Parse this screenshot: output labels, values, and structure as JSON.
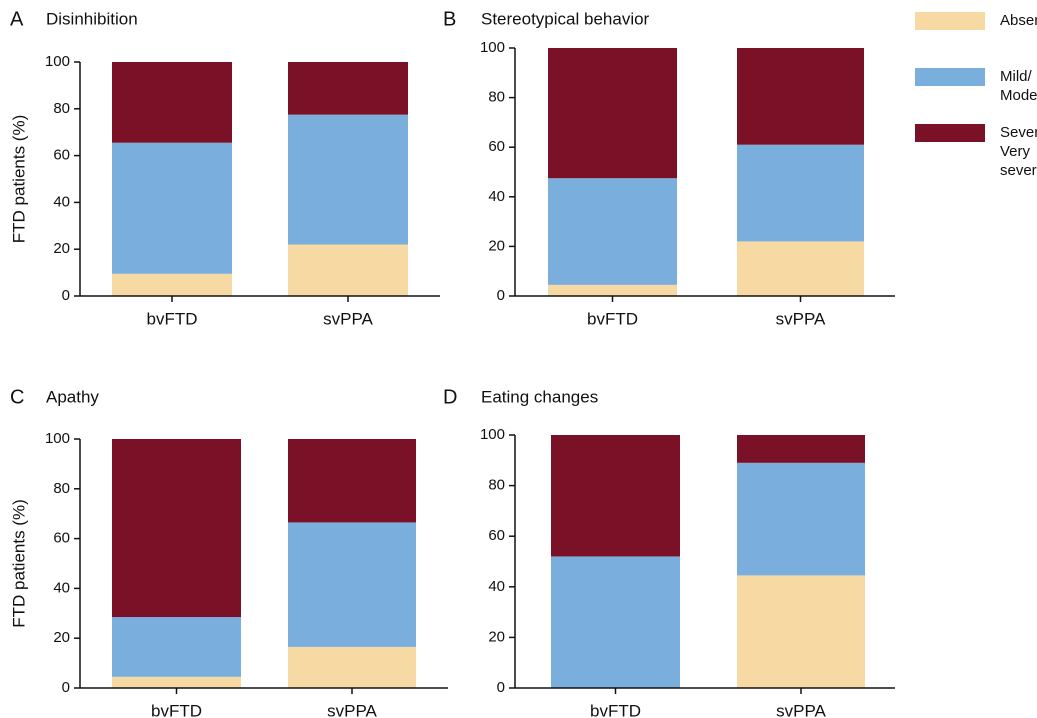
{
  "chart_data": [
    {
      "type": "stacked-bar",
      "panel": "A",
      "title": "Disinhibition",
      "ylabel": "FTD patients (%)",
      "legend": "right",
      "categories": [
        "bvFTD",
        "svPPA"
      ],
      "series": [
        {
          "name": "Absent",
          "color": "#f7d9a4",
          "values": [
            9.5,
            22
          ]
        },
        {
          "name": "Mild/\nModerate",
          "color": "#7aaedd",
          "values": [
            56,
            55.5
          ]
        },
        {
          "name": "Severe/\nVery severe",
          "color": "#7a1126",
          "values": [
            34.5,
            22.5
          ]
        }
      ],
      "ylim": [
        0,
        100
      ],
      "yticks": [
        0,
        20,
        40,
        60,
        80,
        100
      ]
    },
    {
      "type": "stacked-bar",
      "panel": "B",
      "title": "Stereotypical behavior",
      "categories": [
        "bvFTD",
        "svPPA"
      ],
      "series": [
        {
          "color": "#f7d9a4",
          "values": [
            4.5,
            22
          ]
        },
        {
          "color": "#7aaedd",
          "values": [
            43,
            39
          ]
        },
        {
          "color": "#7a1126",
          "values": [
            52.5,
            39
          ]
        }
      ],
      "ylim": [
        0,
        100
      ],
      "yticks": [
        0,
        20,
        40,
        60,
        80,
        100
      ]
    },
    {
      "type": "stacked-bar",
      "panel": "C",
      "title": "Apathy",
      "ylabel": "FTD patients (%)",
      "categories": [
        "bvFTD",
        "svPPA"
      ],
      "series": [
        {
          "color": "#f7d9a4",
          "values": [
            4.5,
            16.5
          ]
        },
        {
          "color": "#7aaedd",
          "values": [
            24,
            50
          ]
        },
        {
          "color": "#7a1126",
          "values": [
            71.5,
            33.5
          ]
        }
      ],
      "ylim": [
        0,
        100
      ],
      "yticks": [
        0,
        20,
        40,
        60,
        80,
        100
      ]
    },
    {
      "type": "stacked-bar",
      "panel": "D",
      "title": "Eating changes",
      "categories": [
        "bvFTD",
        "svPPA"
      ],
      "series": [
        {
          "color": "#f7d9a4",
          "values": [
            0,
            44.5
          ]
        },
        {
          "color": "#7aaedd",
          "values": [
            52,
            44.5
          ]
        },
        {
          "color": "#7a1126",
          "values": [
            48,
            11
          ]
        }
      ],
      "ylim": [
        0,
        100
      ],
      "yticks": [
        0,
        20,
        40,
        60,
        80,
        100
      ]
    }
  ]
}
